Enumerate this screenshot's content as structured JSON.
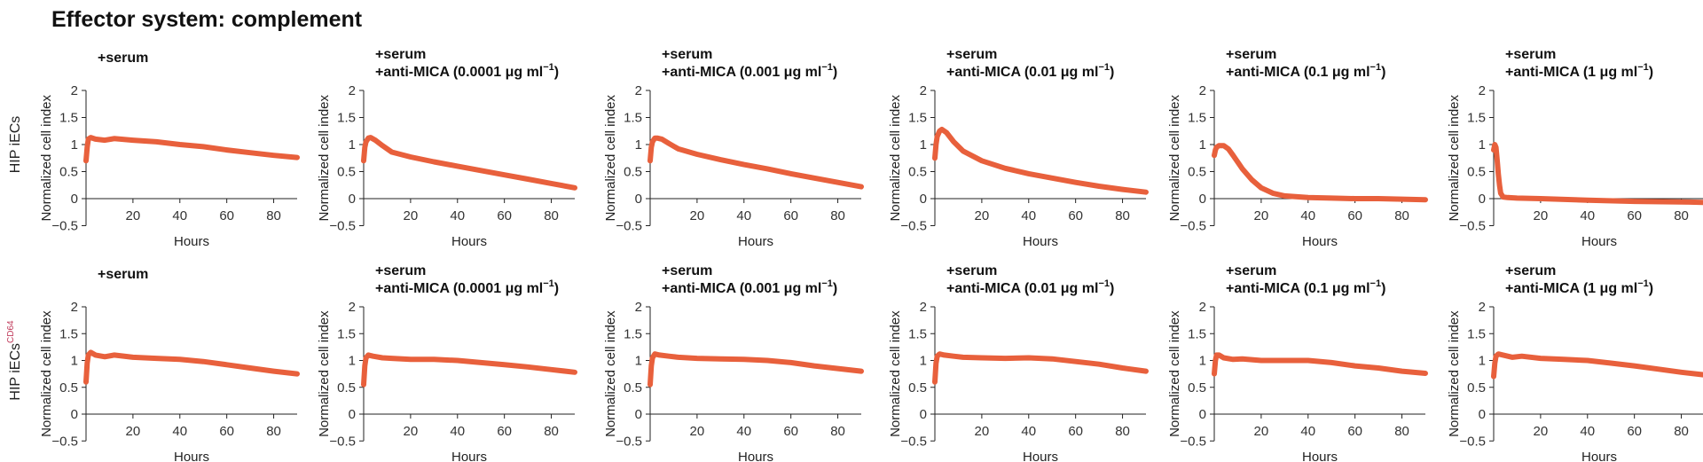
{
  "figure_title": "Effector system: complement",
  "series_color": "#e8603c",
  "label_accent_color": "#c0395a",
  "chart_data": [
    {
      "type": "line",
      "row": 0,
      "col": 0,
      "row_label": "HIP iECs",
      "row_label_sup": "",
      "title_lines": [
        "+serum"
      ],
      "title_unit": "",
      "xlabel": "Hours",
      "ylabel": "Normalized cell index",
      "xlim": [
        0,
        90
      ],
      "ylim": [
        -0.5,
        2
      ],
      "xticks": [
        20,
        40,
        60,
        80
      ],
      "yticks": [
        -0.5,
        0,
        0.5,
        1,
        1.5,
        2
      ],
      "series": [
        {
          "name": "cell index",
          "x": [
            0,
            0.5,
            1,
            2,
            4,
            8,
            12,
            20,
            30,
            40,
            50,
            60,
            70,
            80,
            90
          ],
          "y": [
            0.7,
            0.95,
            1.1,
            1.13,
            1.1,
            1.08,
            1.11,
            1.08,
            1.05,
            1.0,
            0.96,
            0.9,
            0.85,
            0.8,
            0.76
          ]
        }
      ]
    },
    {
      "type": "line",
      "row": 0,
      "col": 1,
      "row_label": "HIP iECs",
      "row_label_sup": "",
      "title_lines": [
        "+serum",
        "+anti-MICA (0.0001 μg ml"
      ],
      "title_unit": "−1",
      "xlabel": "Hours",
      "ylabel": "Normalized cell index",
      "xlim": [
        0,
        90
      ],
      "ylim": [
        -0.5,
        2
      ],
      "xticks": [
        20,
        40,
        60,
        80
      ],
      "yticks": [
        -0.5,
        0,
        0.5,
        1,
        1.5,
        2
      ],
      "series": [
        {
          "name": "cell index",
          "x": [
            0,
            0.5,
            1,
            2,
            3,
            5,
            8,
            12,
            20,
            30,
            40,
            50,
            60,
            70,
            80,
            90
          ],
          "y": [
            0.7,
            0.95,
            1.05,
            1.12,
            1.13,
            1.08,
            0.98,
            0.86,
            0.77,
            0.68,
            0.6,
            0.52,
            0.44,
            0.36,
            0.28,
            0.2
          ]
        }
      ]
    },
    {
      "type": "line",
      "row": 0,
      "col": 2,
      "row_label": "HIP iECs",
      "row_label_sup": "",
      "title_lines": [
        "+serum",
        "+anti-MICA (0.001 μg ml"
      ],
      "title_unit": "−1",
      "xlabel": "Hours",
      "ylabel": "Normalized cell index",
      "xlim": [
        0,
        90
      ],
      "ylim": [
        -0.5,
        2
      ],
      "xticks": [
        20,
        40,
        60,
        80
      ],
      "yticks": [
        -0.5,
        0,
        0.5,
        1,
        1.5,
        2
      ],
      "series": [
        {
          "name": "cell index",
          "x": [
            0,
            0.5,
            1,
            2,
            3,
            5,
            8,
            12,
            20,
            30,
            40,
            50,
            60,
            70,
            80,
            90
          ],
          "y": [
            0.7,
            0.95,
            1.05,
            1.12,
            1.12,
            1.1,
            1.02,
            0.92,
            0.82,
            0.72,
            0.63,
            0.55,
            0.46,
            0.38,
            0.3,
            0.22
          ]
        }
      ]
    },
    {
      "type": "line",
      "row": 0,
      "col": 3,
      "row_label": "HIP iECs",
      "row_label_sup": "",
      "title_lines": [
        "+serum",
        "+anti-MICA (0.01 μg ml"
      ],
      "title_unit": "−1",
      "xlabel": "Hours",
      "ylabel": "Normalized cell index",
      "xlim": [
        0,
        90
      ],
      "ylim": [
        -0.5,
        2
      ],
      "xticks": [
        20,
        40,
        60,
        80
      ],
      "yticks": [
        -0.5,
        0,
        0.5,
        1,
        1.5,
        2
      ],
      "series": [
        {
          "name": "cell index",
          "x": [
            0,
            0.5,
            1,
            2,
            3,
            5,
            8,
            12,
            20,
            30,
            40,
            50,
            60,
            70,
            80,
            90
          ],
          "y": [
            0.75,
            1.0,
            1.15,
            1.25,
            1.28,
            1.22,
            1.05,
            0.88,
            0.7,
            0.56,
            0.46,
            0.38,
            0.3,
            0.23,
            0.17,
            0.12
          ]
        }
      ]
    },
    {
      "type": "line",
      "row": 0,
      "col": 4,
      "row_label": "HIP iECs",
      "row_label_sup": "",
      "title_lines": [
        "+serum",
        "+anti-MICA (0.1 μg ml"
      ],
      "title_unit": "−1",
      "xlabel": "Hours",
      "ylabel": "Normalized cell index",
      "xlim": [
        0,
        90
      ],
      "ylim": [
        -0.5,
        2
      ],
      "xticks": [
        20,
        40,
        60,
        80
      ],
      "yticks": [
        -0.5,
        0,
        0.5,
        1,
        1.5,
        2
      ],
      "series": [
        {
          "name": "cell index",
          "x": [
            0,
            0.5,
            1,
            2,
            4,
            6,
            8,
            12,
            16,
            20,
            25,
            30,
            40,
            50,
            60,
            70,
            80,
            90
          ],
          "y": [
            0.8,
            0.9,
            0.95,
            0.98,
            0.98,
            0.92,
            0.8,
            0.55,
            0.35,
            0.2,
            0.1,
            0.05,
            0.02,
            0.01,
            0.0,
            0.0,
            -0.01,
            -0.02
          ]
        }
      ]
    },
    {
      "type": "line",
      "row": 0,
      "col": 5,
      "row_label": "HIP iECs",
      "row_label_sup": "",
      "title_lines": [
        "+serum",
        "+anti-MICA (1 μg ml"
      ],
      "title_unit": "−1",
      "xlabel": "Hours",
      "ylabel": "Normalized cell index",
      "xlim": [
        0,
        90
      ],
      "ylim": [
        -0.5,
        2
      ],
      "xticks": [
        20,
        40,
        60,
        80
      ],
      "yticks": [
        -0.5,
        0,
        0.5,
        1,
        1.5,
        2
      ],
      "series": [
        {
          "name": "cell index",
          "x": [
            0,
            0.5,
            1,
            1.5,
            2,
            2.5,
            3,
            4,
            6,
            10,
            20,
            40,
            60,
            80,
            90
          ],
          "y": [
            0.9,
            1.0,
            0.95,
            0.7,
            0.45,
            0.25,
            0.1,
            0.03,
            0.02,
            0.01,
            0.0,
            -0.03,
            -0.05,
            -0.06,
            -0.07
          ]
        }
      ]
    },
    {
      "type": "line",
      "row": 1,
      "col": 0,
      "row_label": "HIP iECs",
      "row_label_sup": "CD64",
      "title_lines": [
        "+serum"
      ],
      "title_unit": "",
      "xlabel": "Hours",
      "ylabel": "Normalized cell index",
      "xlim": [
        0,
        90
      ],
      "ylim": [
        -0.5,
        2
      ],
      "xticks": [
        20,
        40,
        60,
        80
      ],
      "yticks": [
        -0.5,
        0,
        0.5,
        1,
        1.5,
        2
      ],
      "series": [
        {
          "name": "cell index",
          "x": [
            0,
            0.5,
            1,
            2,
            4,
            8,
            12,
            20,
            30,
            40,
            50,
            60,
            70,
            80,
            90
          ],
          "y": [
            0.6,
            0.95,
            1.1,
            1.15,
            1.1,
            1.07,
            1.1,
            1.06,
            1.04,
            1.02,
            0.98,
            0.92,
            0.86,
            0.8,
            0.75
          ]
        }
      ]
    },
    {
      "type": "line",
      "row": 1,
      "col": 1,
      "row_label": "HIP iECs",
      "row_label_sup": "CD64",
      "title_lines": [
        "+serum",
        "+anti-MICA (0.0001 μg ml"
      ],
      "title_unit": "−1",
      "xlabel": "Hours",
      "ylabel": "Normalized cell index",
      "xlim": [
        0,
        90
      ],
      "ylim": [
        -0.5,
        2
      ],
      "xticks": [
        20,
        40,
        60,
        80
      ],
      "yticks": [
        -0.5,
        0,
        0.5,
        1,
        1.5,
        2
      ],
      "series": [
        {
          "name": "cell index",
          "x": [
            0,
            0.5,
            1,
            2,
            4,
            8,
            12,
            20,
            30,
            40,
            50,
            60,
            70,
            80,
            90
          ],
          "y": [
            0.55,
            0.9,
            1.05,
            1.1,
            1.08,
            1.05,
            1.04,
            1.02,
            1.02,
            1.0,
            0.96,
            0.92,
            0.88,
            0.83,
            0.78
          ]
        }
      ]
    },
    {
      "type": "line",
      "row": 1,
      "col": 2,
      "row_label": "HIP iECs",
      "row_label_sup": "CD64",
      "title_lines": [
        "+serum",
        "+anti-MICA (0.001 μg ml"
      ],
      "title_unit": "−1",
      "xlabel": "Hours",
      "ylabel": "Normalized cell index",
      "xlim": [
        0,
        90
      ],
      "ylim": [
        -0.5,
        2
      ],
      "xticks": [
        20,
        40,
        60,
        80
      ],
      "yticks": [
        -0.5,
        0,
        0.5,
        1,
        1.5,
        2
      ],
      "series": [
        {
          "name": "cell index",
          "x": [
            0,
            0.5,
            1,
            2,
            4,
            8,
            12,
            20,
            30,
            40,
            50,
            60,
            70,
            80,
            90
          ],
          "y": [
            0.55,
            0.9,
            1.05,
            1.12,
            1.1,
            1.08,
            1.06,
            1.04,
            1.03,
            1.02,
            1.0,
            0.96,
            0.9,
            0.85,
            0.8
          ]
        }
      ]
    },
    {
      "type": "line",
      "row": 1,
      "col": 3,
      "row_label": "HIP iECs",
      "row_label_sup": "CD64",
      "title_lines": [
        "+serum",
        "+anti-MICA (0.01 μg ml"
      ],
      "title_unit": "−1",
      "xlabel": "Hours",
      "ylabel": "Normalized cell index",
      "xlim": [
        0,
        90
      ],
      "ylim": [
        -0.5,
        2
      ],
      "xticks": [
        20,
        40,
        60,
        80
      ],
      "yticks": [
        -0.5,
        0,
        0.5,
        1,
        1.5,
        2
      ],
      "series": [
        {
          "name": "cell index",
          "x": [
            0,
            0.5,
            1,
            2,
            4,
            8,
            12,
            20,
            30,
            40,
            50,
            60,
            70,
            80,
            90
          ],
          "y": [
            0.6,
            0.95,
            1.08,
            1.12,
            1.1,
            1.08,
            1.06,
            1.05,
            1.04,
            1.05,
            1.03,
            0.98,
            0.93,
            0.86,
            0.8
          ]
        }
      ]
    },
    {
      "type": "line",
      "row": 1,
      "col": 4,
      "row_label": "HIP iECs",
      "row_label_sup": "CD64",
      "title_lines": [
        "+serum",
        "+anti-MICA (0.1 μg ml"
      ],
      "title_unit": "−1",
      "xlabel": "Hours",
      "ylabel": "Normalized cell index",
      "xlim": [
        0,
        90
      ],
      "ylim": [
        -0.5,
        2
      ],
      "xticks": [
        20,
        40,
        60,
        80
      ],
      "yticks": [
        -0.5,
        0,
        0.5,
        1,
        1.5,
        2
      ],
      "series": [
        {
          "name": "cell index",
          "x": [
            0,
            0.5,
            1,
            2,
            4,
            8,
            12,
            20,
            30,
            40,
            50,
            60,
            70,
            80,
            90
          ],
          "y": [
            0.75,
            1.0,
            1.1,
            1.1,
            1.05,
            1.02,
            1.03,
            1.0,
            1.0,
            1.0,
            0.96,
            0.9,
            0.86,
            0.8,
            0.76
          ]
        }
      ]
    },
    {
      "type": "line",
      "row": 1,
      "col": 5,
      "row_label": "HIP iECs",
      "row_label_sup": "CD64",
      "title_lines": [
        "+serum",
        "+anti-MICA (1 μg ml"
      ],
      "title_unit": "−1",
      "xlabel": "Hours",
      "ylabel": "Normalized cell index",
      "xlim": [
        0,
        90
      ],
      "ylim": [
        -0.5,
        2
      ],
      "xticks": [
        20,
        40,
        60,
        80
      ],
      "yticks": [
        -0.5,
        0,
        0.5,
        1,
        1.5,
        2
      ],
      "series": [
        {
          "name": "cell index",
          "x": [
            0,
            0.5,
            1,
            2,
            4,
            8,
            12,
            20,
            30,
            40,
            50,
            60,
            70,
            80,
            90
          ],
          "y": [
            0.7,
            0.95,
            1.08,
            1.12,
            1.1,
            1.06,
            1.08,
            1.04,
            1.02,
            1.0,
            0.95,
            0.9,
            0.84,
            0.78,
            0.73
          ]
        }
      ]
    }
  ]
}
